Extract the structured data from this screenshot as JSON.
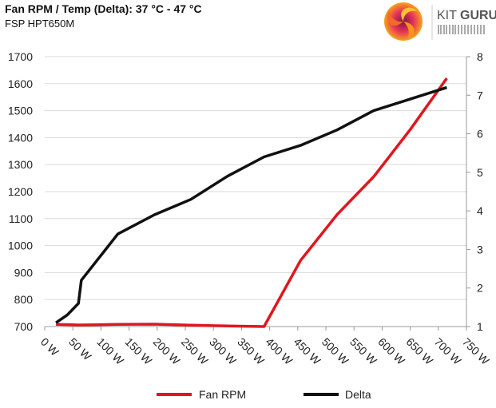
{
  "header": {
    "title": "Fan RPM / Temp (Delta): 37 °C - 47 °C",
    "subtitle": "FSP HPT650M"
  },
  "logo": {
    "text_kit": "KIT",
    "text_guru": "GURU"
  },
  "chart_data": {
    "type": "line",
    "title": "Fan RPM / Temp (Delta): 37 °C - 47 °C",
    "subtitle": "FSP HPT650M",
    "xlabel": "",
    "ylabel": "",
    "y2label": "",
    "xlim": [
      0,
      750
    ],
    "ylim": [
      700,
      1700
    ],
    "y2lim": [
      1,
      8
    ],
    "x_ticks": [
      0,
      50,
      100,
      150,
      200,
      250,
      300,
      350,
      400,
      450,
      500,
      550,
      600,
      650,
      700,
      750
    ],
    "x_tick_labels": [
      "0 W",
      "50 W",
      "100 W",
      "150 W",
      "200 W",
      "250 W",
      "300 W",
      "350 W",
      "400 W",
      "450 W",
      "500 W",
      "550 W",
      "600 W",
      "650 W",
      "700 W",
      "750 W"
    ],
    "y_ticks": [
      700,
      800,
      900,
      1000,
      1100,
      1200,
      1300,
      1400,
      1500,
      1600,
      1700
    ],
    "y2_ticks": [
      1,
      2,
      3,
      4,
      5,
      6,
      7,
      8
    ],
    "grid": true,
    "legend_position": "bottom",
    "x": [
      20,
      40,
      60,
      65,
      130,
      195,
      260,
      325,
      390,
      455,
      520,
      585,
      650,
      715
    ],
    "series": [
      {
        "name": "Fan RPM",
        "axis": "left",
        "color": "#e0161e",
        "values": [
          708,
          707,
          706,
          706,
          708,
          709,
          705,
          702,
          700,
          945,
          1115,
          1255,
          1430,
          1620
        ]
      },
      {
        "name": "Delta",
        "axis": "right",
        "color": "#111111",
        "values": [
          1.1,
          1.3,
          1.6,
          2.2,
          3.4,
          3.9,
          4.3,
          4.9,
          5.4,
          5.7,
          6.1,
          6.6,
          6.9,
          7.2
        ]
      }
    ]
  }
}
